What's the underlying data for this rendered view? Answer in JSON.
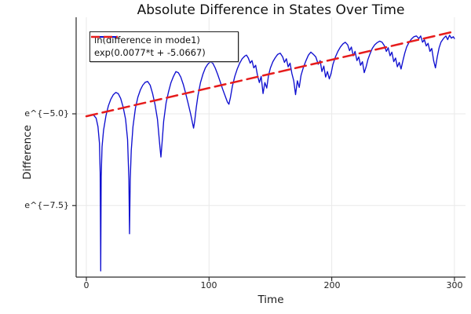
{
  "chart_data": {
    "type": "line",
    "title": "Absolute Difference in States Over Time",
    "xlabel": "Time",
    "ylabel": "Difference",
    "y_scale": "log (labels shown as e^{v}, data stored as ln values)",
    "xlim": [
      -8.3,
      309
    ],
    "ylim_ln": [
      -9.45,
      -2.37
    ],
    "grid": true,
    "legend_position": "top-left",
    "xticks": {
      "values": [
        0,
        100,
        200,
        300
      ],
      "labels": [
        "0",
        "100",
        "200",
        "300"
      ]
    },
    "yticks": {
      "values_ln": [
        -5.0,
        -7.5
      ],
      "labels": [
        "e^{−5.0}",
        "e^{−7.5}"
      ]
    },
    "series": [
      {
        "name": "ln(difference in mode1)",
        "color": "#0f0fd0",
        "style": "solid",
        "points_t_lnv": [
          [
            0,
            -5.07
          ],
          [
            2,
            -5.05
          ],
          [
            4,
            -5.03
          ],
          [
            6,
            -5.04
          ],
          [
            8,
            -5.12
          ],
          [
            9.5,
            -5.35
          ],
          [
            10.7,
            -5.8
          ],
          [
            11.3,
            -6.6
          ],
          [
            11.7,
            -9.28
          ],
          [
            12.1,
            -6.7
          ],
          [
            12.8,
            -5.9
          ],
          [
            14,
            -5.45
          ],
          [
            16,
            -5.05
          ],
          [
            18,
            -4.78
          ],
          [
            20,
            -4.6
          ],
          [
            22,
            -4.48
          ],
          [
            24,
            -4.42
          ],
          [
            26,
            -4.45
          ],
          [
            28,
            -4.58
          ],
          [
            30,
            -4.82
          ],
          [
            32,
            -5.15
          ],
          [
            33.6,
            -5.7
          ],
          [
            34.7,
            -6.8
          ],
          [
            35.2,
            -8.27
          ],
          [
            35.8,
            -6.8
          ],
          [
            36.6,
            -6.0
          ],
          [
            38,
            -5.35
          ],
          [
            40,
            -4.85
          ],
          [
            42,
            -4.55
          ],
          [
            44,
            -4.35
          ],
          [
            46,
            -4.22
          ],
          [
            48,
            -4.14
          ],
          [
            50,
            -4.12
          ],
          [
            52,
            -4.22
          ],
          [
            54,
            -4.45
          ],
          [
            56,
            -4.75
          ],
          [
            58,
            -5.15
          ],
          [
            59.8,
            -5.85
          ],
          [
            60.8,
            -6.18
          ],
          [
            61.8,
            -5.75
          ],
          [
            63,
            -5.2
          ],
          [
            65,
            -4.7
          ],
          [
            67,
            -4.4
          ],
          [
            69,
            -4.15
          ],
          [
            71,
            -3.98
          ],
          [
            73,
            -3.85
          ],
          [
            75,
            -3.88
          ],
          [
            77,
            -4.0
          ],
          [
            79,
            -4.2
          ],
          [
            81,
            -4.45
          ],
          [
            83,
            -4.72
          ],
          [
            85,
            -5.0
          ],
          [
            86.5,
            -5.25
          ],
          [
            87.4,
            -5.39
          ],
          [
            88.3,
            -5.2
          ],
          [
            89.5,
            -4.85
          ],
          [
            91,
            -4.5
          ],
          [
            93,
            -4.15
          ],
          [
            95,
            -3.92
          ],
          [
            97,
            -3.75
          ],
          [
            99,
            -3.65
          ],
          [
            101,
            -3.58
          ],
          [
            103,
            -3.62
          ],
          [
            105,
            -3.75
          ],
          [
            107,
            -3.92
          ],
          [
            109,
            -4.12
          ],
          [
            111,
            -4.32
          ],
          [
            113,
            -4.5
          ],
          [
            115,
            -4.68
          ],
          [
            116.2,
            -4.74
          ],
          [
            117.5,
            -4.55
          ],
          [
            119,
            -4.25
          ],
          [
            121,
            -3.98
          ],
          [
            123,
            -3.78
          ],
          [
            125,
            -3.62
          ],
          [
            127,
            -3.5
          ],
          [
            129,
            -3.43
          ],
          [
            130.5,
            -3.4
          ],
          [
            132,
            -3.48
          ],
          [
            133.5,
            -3.62
          ],
          [
            135,
            -3.55
          ],
          [
            136.5,
            -3.75
          ],
          [
            138,
            -3.68
          ],
          [
            139.5,
            -3.95
          ],
          [
            141,
            -4.15
          ],
          [
            142.5,
            -3.98
          ],
          [
            144,
            -4.45
          ],
          [
            145.5,
            -4.15
          ],
          [
            147,
            -4.3
          ],
          [
            148.5,
            -3.95
          ],
          [
            150,
            -3.75
          ],
          [
            152,
            -3.58
          ],
          [
            154,
            -3.47
          ],
          [
            156,
            -3.38
          ],
          [
            158,
            -3.35
          ],
          [
            160,
            -3.45
          ],
          [
            161.5,
            -3.6
          ],
          [
            163,
            -3.5
          ],
          [
            164.5,
            -3.72
          ],
          [
            166,
            -3.62
          ],
          [
            167.5,
            -3.9
          ],
          [
            169,
            -4.1
          ],
          [
            170.5,
            -4.48
          ],
          [
            172,
            -4.1
          ],
          [
            173.5,
            -4.28
          ],
          [
            175,
            -3.95
          ],
          [
            177,
            -3.72
          ],
          [
            179,
            -3.55
          ],
          [
            181,
            -3.4
          ],
          [
            183,
            -3.32
          ],
          [
            185,
            -3.38
          ],
          [
            187,
            -3.45
          ],
          [
            189,
            -3.65
          ],
          [
            190.5,
            -3.55
          ],
          [
            192,
            -3.85
          ],
          [
            193.5,
            -3.7
          ],
          [
            195,
            -4.0
          ],
          [
            196.5,
            -3.85
          ],
          [
            198,
            -4.05
          ],
          [
            199.5,
            -3.9
          ],
          [
            201,
            -3.65
          ],
          [
            203,
            -3.45
          ],
          [
            205,
            -3.3
          ],
          [
            207,
            -3.18
          ],
          [
            209,
            -3.1
          ],
          [
            211,
            -3.05
          ],
          [
            213,
            -3.12
          ],
          [
            214.5,
            -3.28
          ],
          [
            216,
            -3.18
          ],
          [
            217.5,
            -3.42
          ],
          [
            219,
            -3.3
          ],
          [
            220.5,
            -3.55
          ],
          [
            222,
            -3.45
          ],
          [
            223.5,
            -3.68
          ],
          [
            225,
            -3.58
          ],
          [
            226.5,
            -3.88
          ],
          [
            228,
            -3.72
          ],
          [
            229.5,
            -3.52
          ],
          [
            231,
            -3.38
          ],
          [
            233,
            -3.22
          ],
          [
            235,
            -3.12
          ],
          [
            237,
            -3.06
          ],
          [
            239,
            -3.02
          ],
          [
            241,
            -3.05
          ],
          [
            243,
            -3.15
          ],
          [
            244.5,
            -3.3
          ],
          [
            246,
            -3.2
          ],
          [
            247.5,
            -3.42
          ],
          [
            249,
            -3.32
          ],
          [
            250.5,
            -3.58
          ],
          [
            252,
            -3.48
          ],
          [
            253.5,
            -3.72
          ],
          [
            255,
            -3.6
          ],
          [
            256.5,
            -3.78
          ],
          [
            258,
            -3.55
          ],
          [
            259.5,
            -3.35
          ],
          [
            261,
            -3.18
          ],
          [
            263,
            -3.05
          ],
          [
            265,
            -2.96
          ],
          [
            267,
            -2.9
          ],
          [
            269,
            -2.88
          ],
          [
            271,
            -2.95
          ],
          [
            272.5,
            -2.88
          ],
          [
            274,
            -3.05
          ],
          [
            275.5,
            -2.98
          ],
          [
            277,
            -3.15
          ],
          [
            278.5,
            -3.08
          ],
          [
            280,
            -3.3
          ],
          [
            281.5,
            -3.22
          ],
          [
            283,
            -3.55
          ],
          [
            284.5,
            -3.75
          ],
          [
            286,
            -3.45
          ],
          [
            287.5,
            -3.2
          ],
          [
            289,
            -3.05
          ],
          [
            291,
            -2.95
          ],
          [
            293,
            -2.88
          ],
          [
            294.5,
            -2.98
          ],
          [
            296,
            -2.86
          ],
          [
            297.5,
            -2.94
          ],
          [
            299,
            -2.9
          ],
          [
            300,
            -2.95
          ]
        ]
      },
      {
        "name": "exp(0.0077*t + -5.0667)",
        "color": "#e61c1c",
        "style": "dashed",
        "fit": {
          "slope": 0.0077,
          "intercept": -5.0667
        },
        "points_t_lnv": [
          [
            0,
            -5.0667
          ],
          [
            300,
            -2.7567
          ]
        ]
      }
    ]
  }
}
